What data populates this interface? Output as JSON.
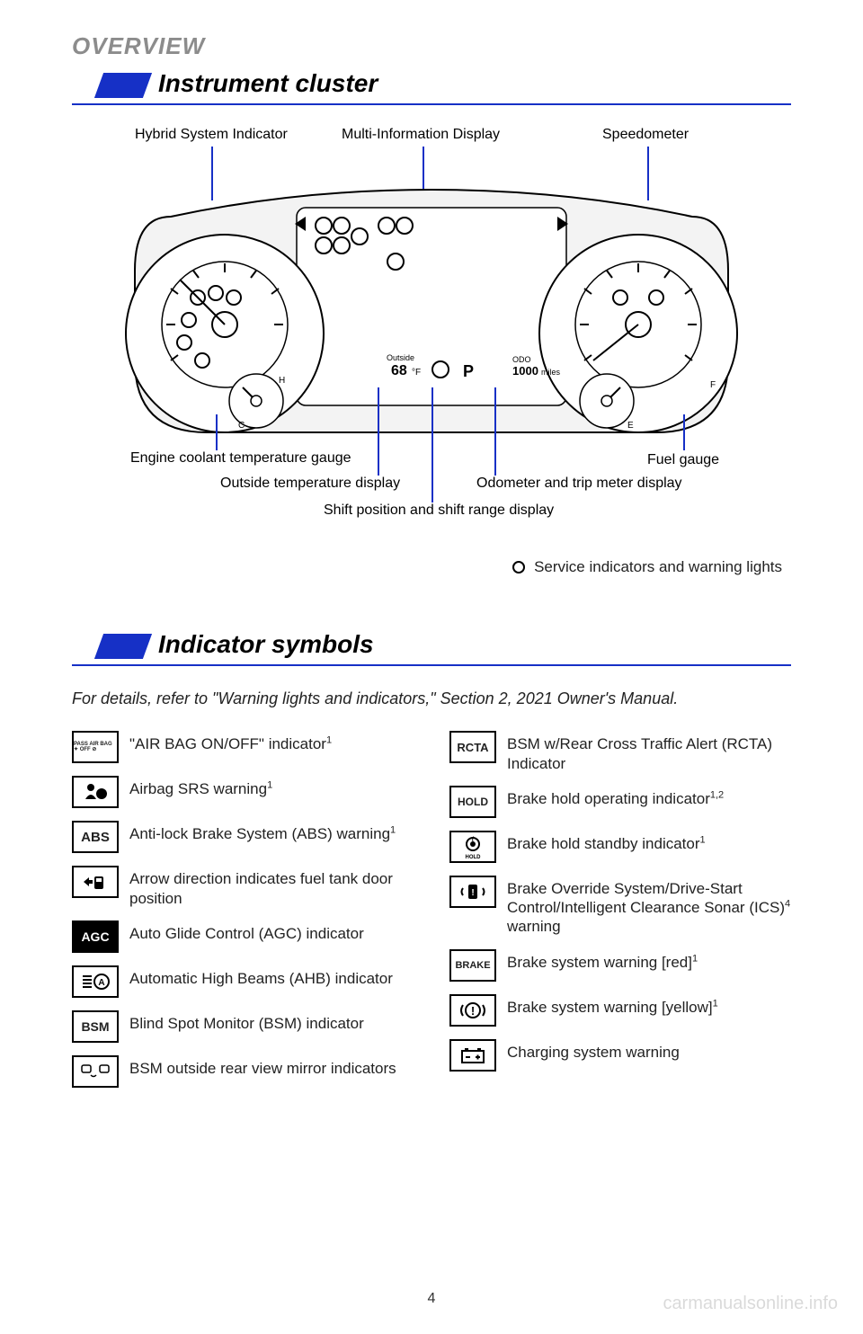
{
  "page": {
    "overview": "OVERVIEW",
    "page_number": "4",
    "watermark": "carmanualsonline.info"
  },
  "section1": {
    "title": "Instrument cluster",
    "labels": {
      "top_left": "Hybrid System Indicator",
      "top_mid": "Multi-Information Display",
      "top_right": "Speedometer",
      "btm_eng": "Engine coolant temperature gauge",
      "btm_outside": "Outside temperature display",
      "btm_shift": "Shift position and shift range display",
      "btm_odo": "Odometer and trip meter display",
      "btm_fuel": "Fuel gauge"
    },
    "display_text": {
      "outside": "Outside",
      "temp": "68",
      "temp_unit": "°F",
      "gear": "P",
      "odo_label": "ODO",
      "odo_val": "1000",
      "odo_unit": "miles",
      "H": "H",
      "C": "C",
      "F": "F",
      "E": "E"
    },
    "legend": "Service indicators and warning lights"
  },
  "section2": {
    "title": "Indicator symbols",
    "intro": "For details, refer to \"Warning lights and indicators,\" Section 2, 2021 Owner's Manual.",
    "left": [
      {
        "icon": "air",
        "text": "\"AIR BAG ON/OFF\" indicator",
        "sup": "1"
      },
      {
        "icon": "srs",
        "text": "Airbag SRS warning",
        "sup": "1"
      },
      {
        "icon": "ABS",
        "text": "Anti-lock Brake System (ABS) warning",
        "sup": "1"
      },
      {
        "icon": "fuel",
        "text": "Arrow direction indicates fuel tank door position",
        "sup": ""
      },
      {
        "icon": "AGC",
        "inv": true,
        "text": "Auto Glide Control (AGC) indicator",
        "sup": ""
      },
      {
        "icon": "ahb",
        "text": "Automatic High Beams (AHB) indicator",
        "sup": ""
      },
      {
        "icon": "BSM",
        "text": "Blind Spot Monitor (BSM) indicator",
        "sup": ""
      },
      {
        "icon": "mirror",
        "text": "BSM outside rear view mirror indicators",
        "sup": ""
      }
    ],
    "right": [
      {
        "icon": "RCTA",
        "text": "BSM w/Rear Cross Traffic Alert (RCTA) Indicator",
        "sup": ""
      },
      {
        "icon": "HOLD",
        "text": "Brake hold operating indicator",
        "sup": "1,2"
      },
      {
        "icon": "holdsb",
        "text": "Brake hold standby indicator",
        "sup": "1"
      },
      {
        "icon": "bos",
        "text": "Brake Override System/Drive-Start Control/Intelligent Clearance Sonar (ICS)",
        "sup": "4",
        "suffix": " warning"
      },
      {
        "icon": "BRAKE",
        "text": "Brake system warning [red]",
        "sup": "1"
      },
      {
        "icon": "excl",
        "text": "Brake system warning [yellow]",
        "sup": "1"
      },
      {
        "icon": "batt",
        "text": "Charging system warning",
        "sup": ""
      }
    ]
  },
  "colors": {
    "accent": "#1630c6",
    "grey_title": "#8c8c8c"
  }
}
